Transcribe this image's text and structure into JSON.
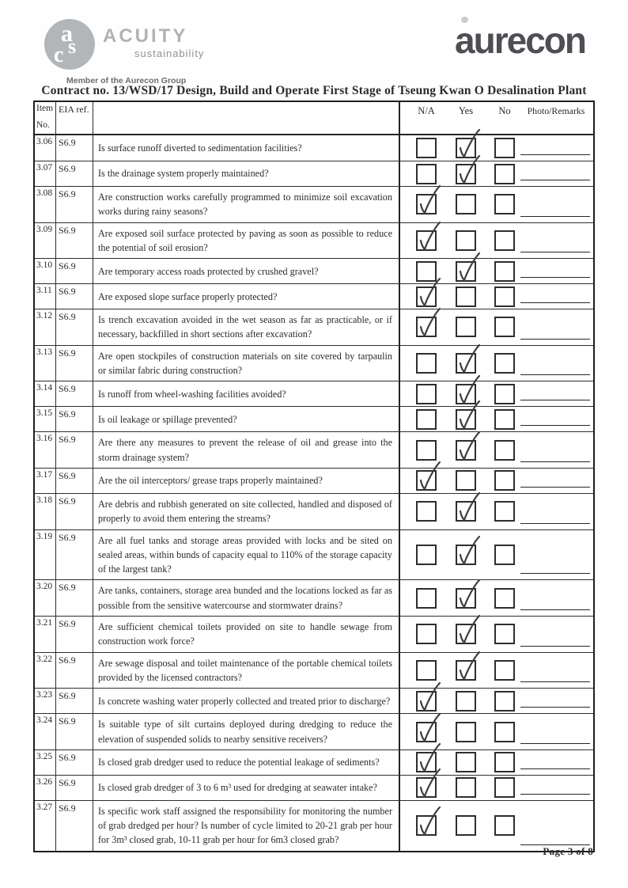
{
  "page": {
    "title": "Contract no.  13/WSD/17 Design, Build and Operate First Stage of Tseung Kwan O Desalination Plant",
    "footer_page": "Page 3 of 8"
  },
  "logos": {
    "acuity": {
      "monogram_letters": [
        "a",
        "s",
        "c"
      ],
      "name": "ACUITY",
      "tagline": "sustainability",
      "member_line": "Member of the Aurecon Group"
    },
    "aurecon": {
      "wordmark": "aurecon"
    }
  },
  "table": {
    "headers": {
      "item_line1": "Item",
      "item_line2": "No.",
      "eia": "EIA ref.",
      "na": "N/A",
      "yes": "Yes",
      "no": "No",
      "remarks": "Photo/Remarks"
    },
    "rows": [
      {
        "item": "3.06",
        "eia": "S6.9",
        "question": "Is surface runoff diverted to sedimentation facilities?",
        "checked": "Yes"
      },
      {
        "item": "3.07",
        "eia": "S6.9",
        "question": "Is the drainage system properly maintained?",
        "checked": "Yes"
      },
      {
        "item": "3.08",
        "eia": "S6.9",
        "question": "Are construction works carefully programmed to minimize soil excavation works during rainy seasons?",
        "checked": "N/A"
      },
      {
        "item": "3.09",
        "eia": "S6.9",
        "question": "Are exposed soil surface protected by paving as soon as possible to reduce the potential of soil erosion?",
        "checked": "N/A"
      },
      {
        "item": "3.10",
        "eia": "S6.9",
        "question": "Are temporary access roads protected by crushed gravel?",
        "checked": "Yes"
      },
      {
        "item": "3.11",
        "eia": "S6.9",
        "question": "Are exposed slope surface properly protected?",
        "checked": "N/A"
      },
      {
        "item": "3.12",
        "eia": "S6.9",
        "question": "Is trench excavation avoided in the wet season as far as practicable, or if necessary, backfilled in short sections after excavation?",
        "checked": "N/A"
      },
      {
        "item": "3.13",
        "eia": "S6.9",
        "question": "Are open stockpiles of construction materials on site covered by tarpaulin or similar fabric during construction?",
        "checked": "Yes"
      },
      {
        "item": "3.14",
        "eia": "S6.9",
        "question": "Is runoff from wheel-washing facilities avoided?",
        "checked": "Yes"
      },
      {
        "item": "3.15",
        "eia": "S6.9",
        "question": "Is oil leakage or spillage prevented?",
        "checked": "Yes"
      },
      {
        "item": "3.16",
        "eia": "S6.9",
        "question": "Are there any measures to prevent the release of oil and grease into the storm drainage system?",
        "checked": "Yes"
      },
      {
        "item": "3.17",
        "eia": "S6.9",
        "question": "Are the oil interceptors/ grease traps properly maintained?",
        "checked": "N/A"
      },
      {
        "item": "3.18",
        "eia": "S6.9",
        "question": "Are debris and rubbish generated on site collected, handled and disposed of properly to avoid them entering the streams?",
        "checked": "Yes"
      },
      {
        "item": "3.19",
        "eia": "S6.9",
        "question": "Are all fuel tanks and storage areas provided with locks and be sited on sealed areas, within bunds of capacity equal to 110% of the storage capacity of the largest tank?",
        "checked": "Yes"
      },
      {
        "item": "3.20",
        "eia": "S6.9",
        "question": "Are tanks, containers, storage area bunded and the locations locked as far as possible from the sensitive watercourse and stormwater drains?",
        "checked": "Yes"
      },
      {
        "item": "3.21",
        "eia": "S6.9",
        "question": "Are sufficient chemical toilets provided on site to handle sewage from construction work force?",
        "checked": "Yes"
      },
      {
        "item": "3.22",
        "eia": "S6.9",
        "question": "Are sewage disposal and toilet maintenance of the portable chemical toilets provided by the licensed contractors?",
        "checked": "Yes"
      },
      {
        "item": "3.23",
        "eia": "S6.9",
        "question": "Is concrete washing water properly collected and treated prior to discharge?",
        "checked": "N/A"
      },
      {
        "item": "3.24",
        "eia": "S6.9",
        "question": "Is suitable type of silt curtains deployed during dredging to reduce the elevation of suspended solids to nearby sensitive receivers?",
        "checked": "N/A"
      },
      {
        "item": "3.25",
        "eia": "S6.9",
        "question": "Is closed grab dredger used to reduce the potential leakage of sediments?",
        "checked": "N/A"
      },
      {
        "item": "3.26",
        "eia": "S6.9",
        "question": "Is closed grab dredger of 3 to 6 m³ used for dredging at seawater intake?",
        "checked": "N/A"
      },
      {
        "item": "3.27",
        "eia": "S6.9",
        "question": "Is specific work staff assigned the responsibility for monitoring the number of grab dredged per hour? Is number of cycle limited to 20-21 grab per hour for 3m³ closed grab, 10-11 grab per hour for 6m3 closed grab?",
        "checked": "N/A"
      }
    ]
  },
  "colors": {
    "ink": "#2b2b2b",
    "logo_gray": "#4e4f54",
    "light_gray": "#b3b6b9"
  }
}
